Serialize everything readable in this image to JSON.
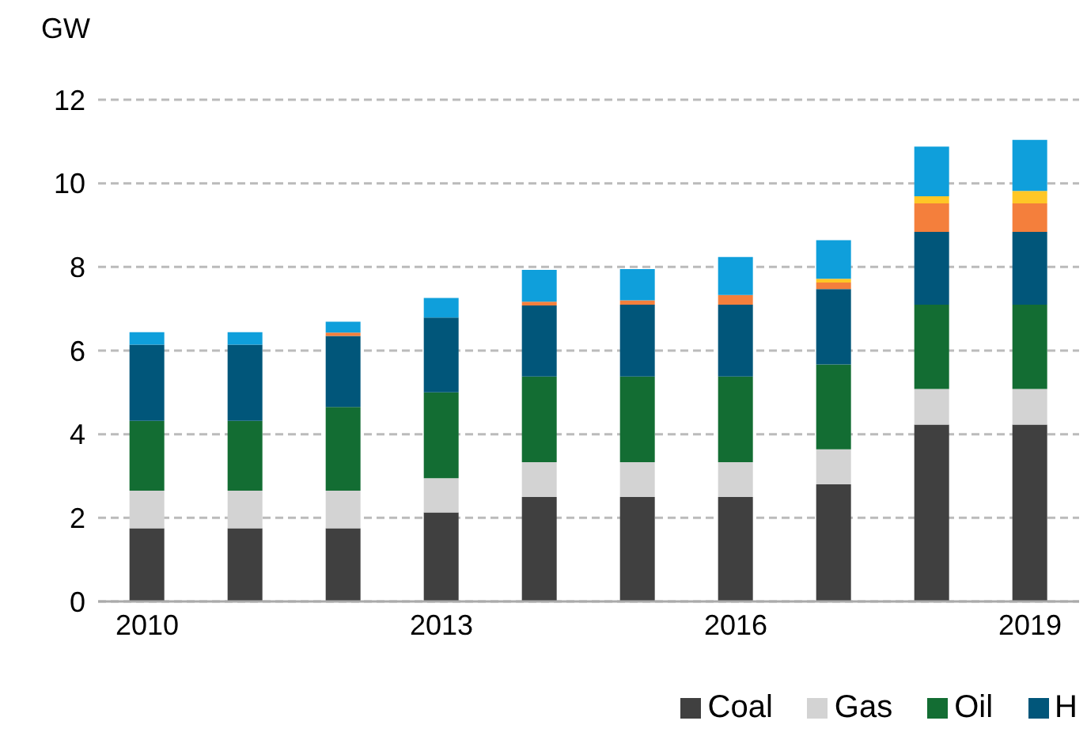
{
  "chart_data": {
    "type": "bar",
    "stacked": true,
    "ylabel": "GW",
    "categories": [
      "2010",
      null,
      null,
      "2013",
      null,
      null,
      "2016",
      null,
      null,
      "2019"
    ],
    "series": [
      {
        "name": "Coal",
        "color": "#404040",
        "values": [
          1.75,
          1.75,
          1.75,
          2.13,
          2.5,
          2.5,
          2.5,
          2.8,
          4.23,
          4.23
        ]
      },
      {
        "name": "Gas",
        "color": "#d3d3d3",
        "values": [
          0.9,
          0.9,
          0.9,
          0.82,
          0.83,
          0.83,
          0.83,
          0.84,
          0.85,
          0.85
        ]
      },
      {
        "name": "Oil",
        "color": "#136d33",
        "values": [
          1.67,
          1.67,
          2.0,
          2.05,
          2.05,
          2.05,
          2.05,
          2.03,
          2.02,
          2.02
        ]
      },
      {
        "name": "H",
        "color": "#01567a",
        "values": [
          1.82,
          1.82,
          1.7,
          1.79,
          1.7,
          1.72,
          1.72,
          1.8,
          1.74,
          1.74
        ]
      },
      {
        "color": "#f47f3c",
        "values": [
          null,
          null,
          0.08,
          null,
          0.09,
          0.1,
          0.23,
          0.16,
          0.68,
          0.68
        ]
      },
      {
        "color": "#ffc726",
        "values": [
          null,
          null,
          null,
          null,
          null,
          null,
          null,
          0.09,
          0.17,
          0.3
        ]
      },
      {
        "color": "#0f9fdb",
        "values": [
          0.3,
          0.3,
          0.26,
          0.47,
          0.76,
          0.75,
          0.91,
          0.92,
          1.19,
          1.22
        ]
      }
    ],
    "ylim": [
      0,
      12
    ],
    "yticks": [
      0,
      2,
      4,
      6,
      8,
      10,
      12
    ],
    "grid": "y",
    "legend": "bottom right"
  }
}
